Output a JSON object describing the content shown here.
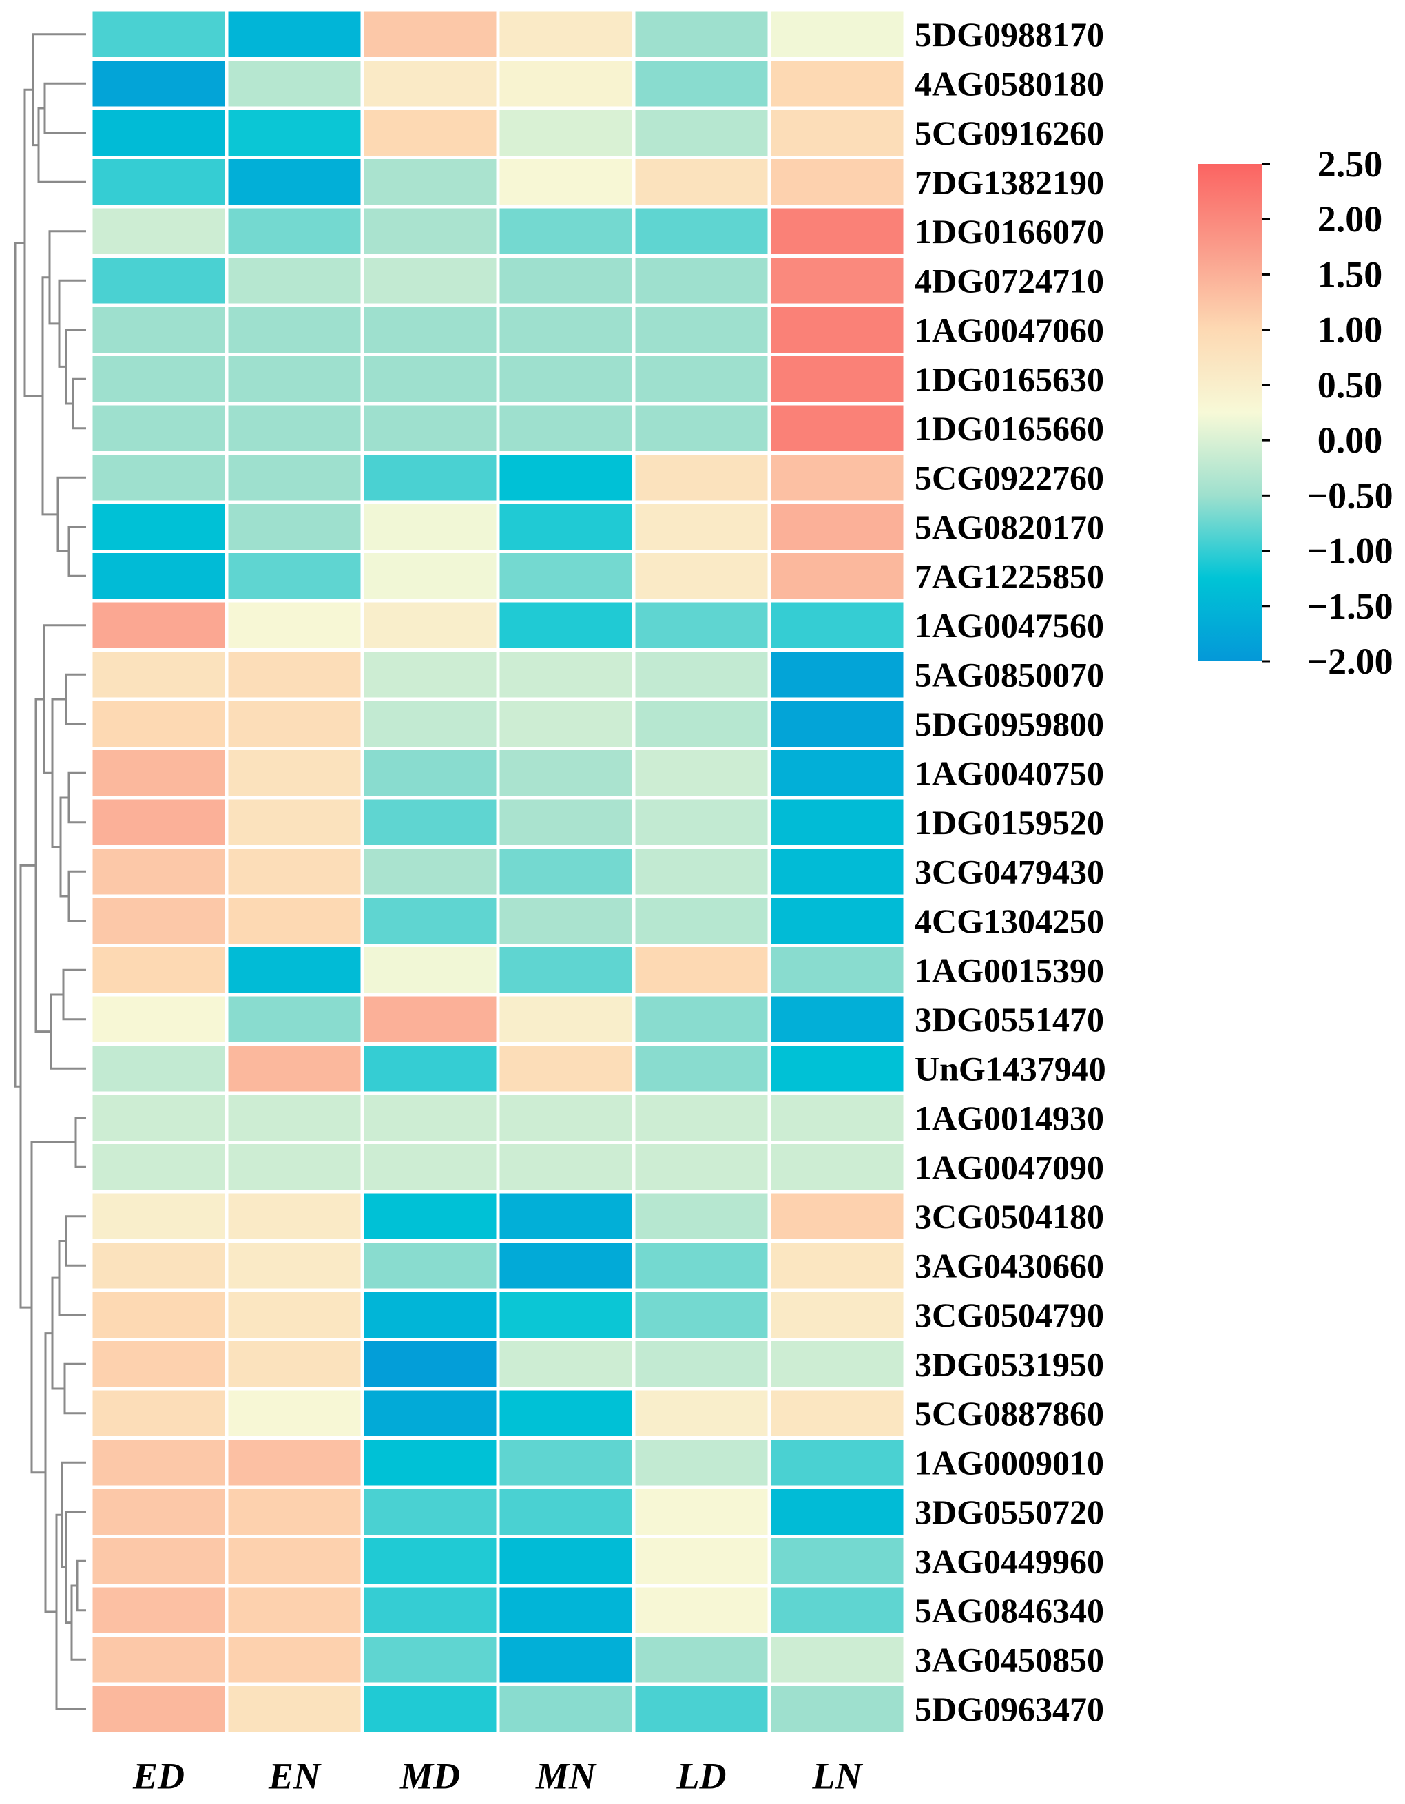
{
  "chart_data": {
    "type": "heatmap",
    "title": "",
    "columns": [
      "ED",
      "EN",
      "MD",
      "MN",
      "LD",
      "LN"
    ],
    "rows": [
      "5DG0988170",
      "4AG0580180",
      "5CG0916260",
      "7DG1382190",
      "1DG0166070",
      "4DG0724710",
      "1AG0047060",
      "1DG0165630",
      "1DG0165660",
      "5CG0922760",
      "5AG0820170",
      "7AG1225850",
      "1AG0047560",
      "5AG0850070",
      "5DG0959800",
      "1AG0040750",
      "1DG0159520",
      "3CG0479430",
      "4CG1304250",
      "1AG0015390",
      "3DG0551470",
      "UnG1437940",
      "1AG0014930",
      "1AG0047090",
      "3CG0504180",
      "3AG0430660",
      "3CG0504790",
      "3DG0531950",
      "5CG0887860",
      "1AG0009010",
      "3DG0550720",
      "3AG0449960",
      "5AG0846340",
      "3AG0450850",
      "5DG0963470"
    ],
    "values": [
      [
        -0.9,
        -1.5,
        1.2,
        0.6,
        -0.5,
        0.2
      ],
      [
        -1.8,
        -0.3,
        0.6,
        0.4,
        -0.6,
        1.0
      ],
      [
        -1.4,
        -1.2,
        1.0,
        0.0,
        -0.3,
        0.9
      ],
      [
        -1.0,
        -1.6,
        -0.4,
        0.3,
        0.8,
        1.1
      ],
      [
        -0.1,
        -0.7,
        -0.4,
        -0.7,
        -0.8,
        2.1
      ],
      [
        -0.9,
        -0.3,
        -0.2,
        -0.5,
        -0.5,
        2.0
      ],
      [
        -0.5,
        -0.5,
        -0.5,
        -0.5,
        -0.5,
        2.1
      ],
      [
        -0.5,
        -0.5,
        -0.5,
        -0.5,
        -0.5,
        2.1
      ],
      [
        -0.5,
        -0.5,
        -0.5,
        -0.5,
        -0.5,
        2.1
      ],
      [
        -0.5,
        -0.5,
        -0.9,
        -1.3,
        0.8,
        1.3
      ],
      [
        -1.3,
        -0.5,
        0.2,
        -1.1,
        0.6,
        1.5
      ],
      [
        -1.4,
        -0.8,
        0.2,
        -0.7,
        0.6,
        1.4
      ],
      [
        1.6,
        0.3,
        0.5,
        -1.1,
        -0.8,
        -1.0
      ],
      [
        0.8,
        0.9,
        -0.1,
        -0.1,
        -0.2,
        -1.8
      ],
      [
        1.0,
        0.9,
        -0.2,
        -0.1,
        -0.3,
        -1.8
      ],
      [
        1.4,
        0.8,
        -0.6,
        -0.4,
        -0.1,
        -1.6
      ],
      [
        1.5,
        0.8,
        -0.8,
        -0.4,
        -0.2,
        -1.4
      ],
      [
        1.2,
        0.9,
        -0.4,
        -0.7,
        -0.2,
        -1.4
      ],
      [
        1.2,
        1.0,
        -0.8,
        -0.4,
        -0.3,
        -1.4
      ],
      [
        1.0,
        -1.4,
        0.2,
        -0.8,
        1.0,
        -0.6
      ],
      [
        0.3,
        -0.6,
        1.5,
        0.5,
        -0.6,
        -1.6
      ],
      [
        -0.2,
        1.4,
        -1.0,
        0.9,
        -0.6,
        -1.3
      ],
      [
        -0.1,
        -0.1,
        -0.1,
        -0.1,
        -0.1,
        -0.1
      ],
      [
        -0.1,
        -0.1,
        -0.1,
        -0.1,
        -0.1,
        -0.1
      ],
      [
        0.5,
        0.6,
        -1.3,
        -1.6,
        -0.3,
        1.1
      ],
      [
        0.8,
        0.6,
        -0.6,
        -1.7,
        -0.7,
        0.7
      ],
      [
        1.0,
        0.7,
        -1.5,
        -1.2,
        -0.7,
        0.6
      ],
      [
        1.1,
        0.8,
        -1.9,
        -0.1,
        -0.2,
        -0.1
      ],
      [
        0.9,
        0.3,
        -1.7,
        -1.3,
        0.5,
        0.7
      ],
      [
        1.2,
        1.3,
        -1.3,
        -0.8,
        -0.2,
        -0.9
      ],
      [
        1.2,
        1.1,
        -0.9,
        -0.9,
        0.3,
        -1.4
      ],
      [
        1.2,
        1.1,
        -1.1,
        -1.4,
        0.3,
        -0.7
      ],
      [
        1.3,
        1.1,
        -1.0,
        -1.5,
        0.3,
        -0.8
      ],
      [
        1.2,
        1.1,
        -0.8,
        -1.6,
        -0.5,
        -0.1
      ],
      [
        1.4,
        0.8,
        -1.1,
        -0.6,
        -0.9,
        -0.5
      ]
    ],
    "colorbar": {
      "range": [
        -2.0,
        2.5
      ],
      "ticks": [
        "2.50",
        "2.00",
        "1.50",
        "1.00",
        "0.50",
        "0.00",
        "−0.50",
        "−1.00",
        "−1.50",
        "−2.00"
      ],
      "colors": [
        "#0498d8",
        "#00c4d6",
        "#9ee0ce",
        "#f7f9d7",
        "#fdd9b3",
        "#fa9b8a",
        "#fb6462"
      ]
    },
    "dendrogram": "row clustering on left"
  }
}
